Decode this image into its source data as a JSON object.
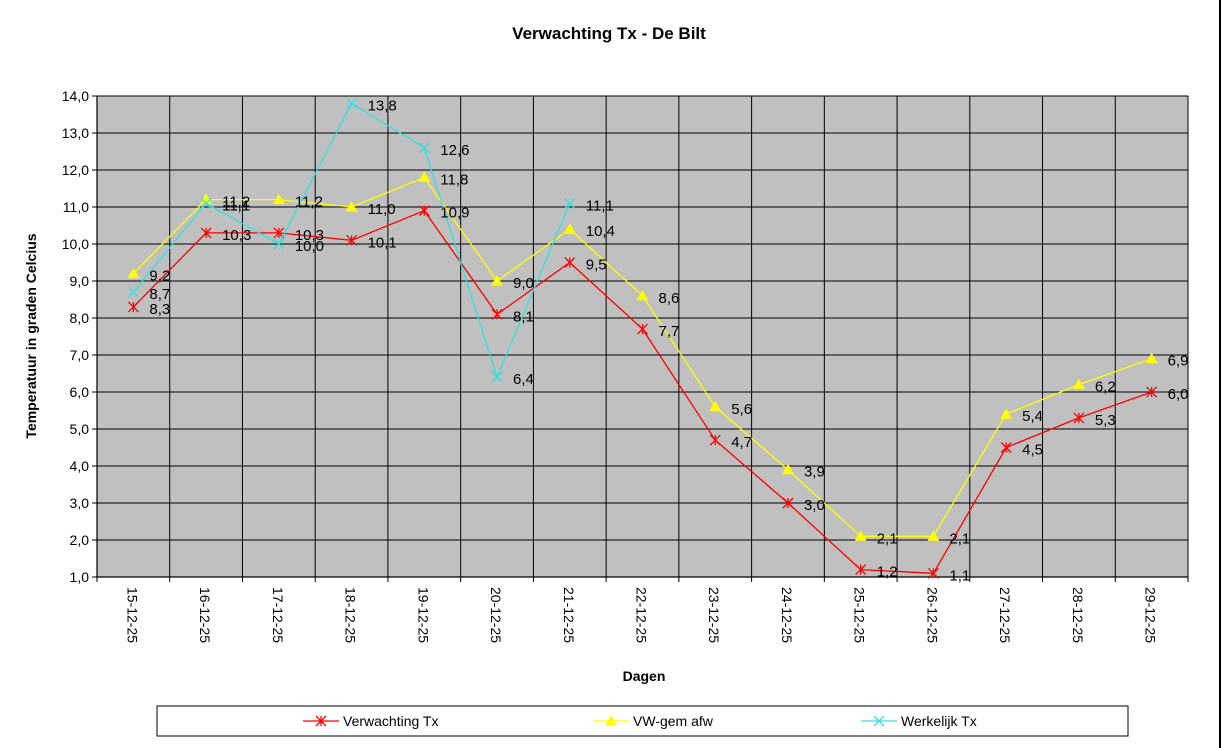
{
  "chart_data": {
    "type": "line",
    "title": "Verwachting Tx - De Bilt",
    "xlabel": "Dagen",
    "ylabel": "Temperatuur in graden Celcius",
    "ylim": [
      1.0,
      14.0
    ],
    "ytick_step": 1.0,
    "grid": true,
    "plot_background": "#c0c0c0",
    "legend_position": "bottom",
    "categories": [
      "15-12-25",
      "16-12-25",
      "17-12-25",
      "18-12-25",
      "19-12-25",
      "20-12-25",
      "21-12-25",
      "22-12-25",
      "23-12-25",
      "24-12-25",
      "25-12-25",
      "26-12-25",
      "27-12-25",
      "28-12-25",
      "29-12-25"
    ],
    "series": [
      {
        "name": "Verwachting Tx",
        "color": "#ff0000",
        "marker": "asterisk",
        "values": [
          8.3,
          10.3,
          10.3,
          10.1,
          10.9,
          8.1,
          9.5,
          7.7,
          4.7,
          3.0,
          1.2,
          1.1,
          4.5,
          5.3,
          6.0
        ]
      },
      {
        "name": "VW-gem afw",
        "color": "#ffff00",
        "marker": "triangle",
        "values": [
          9.2,
          11.2,
          11.2,
          11.0,
          11.8,
          9.0,
          10.4,
          8.6,
          5.6,
          3.9,
          2.1,
          2.1,
          5.4,
          6.2,
          6.9
        ]
      },
      {
        "name": "Werkelijk Tx",
        "color": "#33e0e0",
        "marker": "x",
        "values": [
          8.7,
          11.1,
          10.0,
          13.8,
          12.6,
          6.4,
          11.1,
          null,
          null,
          null,
          null,
          null,
          null,
          null,
          null
        ]
      }
    ]
  }
}
